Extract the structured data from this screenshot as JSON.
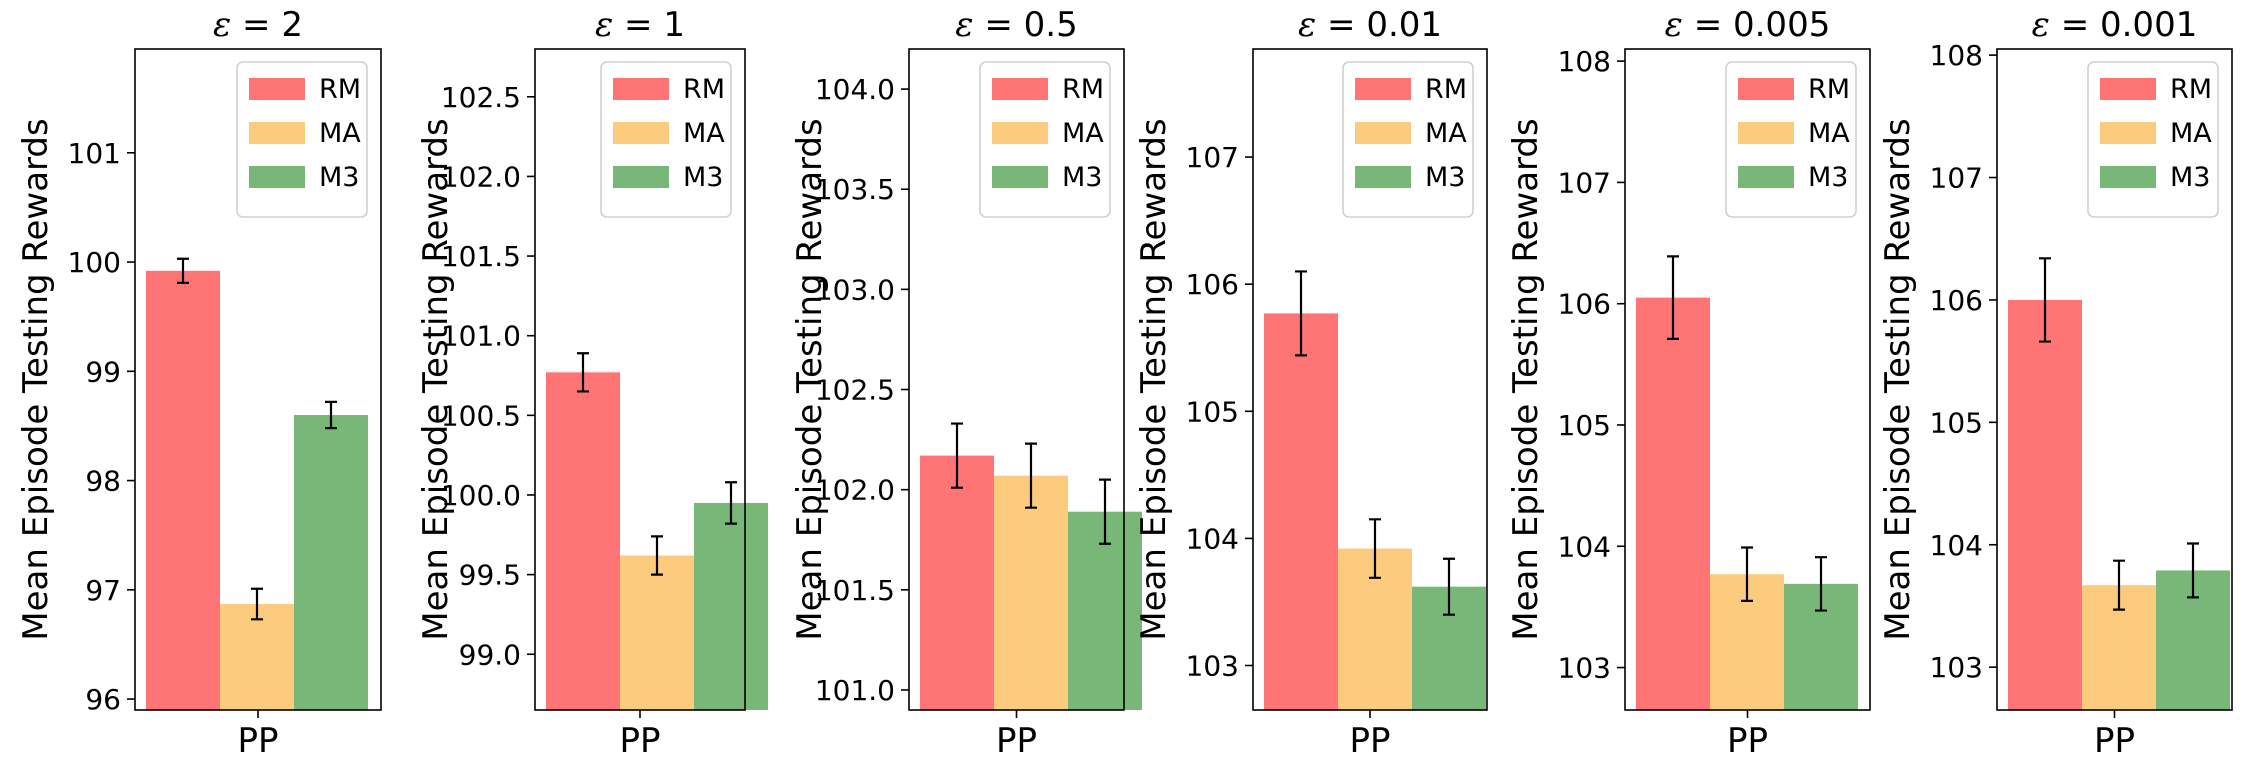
{
  "chart_data": [
    {
      "type": "bar",
      "title": "ε = 2",
      "title_prefix": "ε",
      "title_value": " = 2",
      "ylabel": "Mean Episode Testing Rewards",
      "categories": [
        "PP"
      ],
      "ylim": [
        95.9,
        101.95
      ],
      "yticks": [
        96,
        97,
        98,
        99,
        100,
        101
      ],
      "ytick_labels": [
        "96",
        "97",
        "98",
        "99",
        "100",
        "101"
      ],
      "series": [
        {
          "name": "RM",
          "values": [
            99.92
          ],
          "err": [
            0.11
          ]
        },
        {
          "name": "MA",
          "values": [
            96.87
          ],
          "err": [
            0.14
          ]
        },
        {
          "name": "M3",
          "values": [
            98.6
          ],
          "err": [
            0.12
          ]
        }
      ],
      "legend_position": "top-right"
    },
    {
      "type": "bar",
      "title": "ε = 1",
      "title_prefix": "ε",
      "title_value": " = 1",
      "ylabel": "Mean Episode Testing Rewards",
      "categories": [
        "PP"
      ],
      "ylim": [
        98.65,
        102.8
      ],
      "yticks": [
        99.0,
        99.5,
        100.0,
        100.5,
        101.0,
        101.5,
        102.0,
        102.5
      ],
      "ytick_labels": [
        "99.0",
        "99.5",
        "100.0",
        "100.5",
        "101.0",
        "101.5",
        "102.0",
        "102.5"
      ],
      "series": [
        {
          "name": "RM",
          "values": [
            100.77
          ],
          "err": [
            0.12
          ]
        },
        {
          "name": "MA",
          "values": [
            99.62
          ],
          "err": [
            0.12
          ]
        },
        {
          "name": "M3",
          "values": [
            99.95
          ],
          "err": [
            0.13
          ]
        }
      ],
      "legend_position": "top-right"
    },
    {
      "type": "bar",
      "title": "ε = 0.5",
      "title_prefix": "ε",
      "title_value": " = 0.5",
      "ylabel": "Mean Episode Testing Rewards",
      "categories": [
        "PP"
      ],
      "ylim": [
        100.9,
        104.2
      ],
      "yticks": [
        101.0,
        101.5,
        102.0,
        102.5,
        103.0,
        103.5,
        104.0
      ],
      "ytick_labels": [
        "101.0",
        "101.5",
        "102.0",
        "102.5",
        "103.0",
        "103.5",
        "104.0"
      ],
      "series": [
        {
          "name": "RM",
          "values": [
            102.17
          ],
          "err": [
            0.16
          ]
        },
        {
          "name": "MA",
          "values": [
            102.07
          ],
          "err": [
            0.16
          ]
        },
        {
          "name": "M3",
          "values": [
            101.89
          ],
          "err": [
            0.16
          ]
        }
      ],
      "legend_position": "top-right"
    },
    {
      "type": "bar",
      "title": "ε = 0.01",
      "title_prefix": "ε",
      "title_value": " = 0.01",
      "ylabel": "Mean Episode Testing Rewards",
      "categories": [
        "PP"
      ],
      "ylim": [
        102.65,
        107.85
      ],
      "yticks": [
        103,
        104,
        105,
        106,
        107
      ],
      "ytick_labels": [
        "103",
        "104",
        "105",
        "106",
        "107"
      ],
      "series": [
        {
          "name": "RM",
          "values": [
            105.77
          ],
          "err": [
            0.33
          ]
        },
        {
          "name": "MA",
          "values": [
            103.92
          ],
          "err": [
            0.23
          ]
        },
        {
          "name": "M3",
          "values": [
            103.62
          ],
          "err": [
            0.22
          ]
        }
      ],
      "legend_position": "top-right"
    },
    {
      "type": "bar",
      "title": "ε = 0.005",
      "title_prefix": "ε",
      "title_value": " = 0.005",
      "ylabel": "Mean Episode Testing Rewards",
      "categories": [
        "PP"
      ],
      "ylim": [
        102.65,
        108.1
      ],
      "yticks": [
        103,
        104,
        105,
        106,
        107,
        108
      ],
      "ytick_labels": [
        "103",
        "104",
        "105",
        "106",
        "107",
        "108"
      ],
      "series": [
        {
          "name": "RM",
          "values": [
            106.05
          ],
          "err": [
            0.34
          ]
        },
        {
          "name": "MA",
          "values": [
            103.77
          ],
          "err": [
            0.22
          ]
        },
        {
          "name": "M3",
          "values": [
            103.69
          ],
          "err": [
            0.22
          ]
        }
      ],
      "legend_position": "top-right"
    },
    {
      "type": "bar",
      "title": "ε = 0.001",
      "title_prefix": "ε",
      "title_value": " = 0.001",
      "ylabel": "Mean Episode Testing Rewards",
      "categories": [
        "PP"
      ],
      "ylim": [
        102.65,
        108.05
      ],
      "yticks": [
        103,
        104,
        105,
        106,
        107,
        108
      ],
      "ytick_labels": [
        "103",
        "104",
        "105",
        "106",
        "107",
        "108"
      ],
      "series": [
        {
          "name": "RM",
          "values": [
            106.0
          ],
          "err": [
            0.34
          ]
        },
        {
          "name": "MA",
          "values": [
            103.67
          ],
          "err": [
            0.2
          ]
        },
        {
          "name": "M3",
          "values": [
            103.79
          ],
          "err": [
            0.22
          ]
        }
      ],
      "legend_position": "top-right"
    }
  ],
  "colors": {
    "RM": "#ff7575",
    "MA": "#fdcb7d",
    "M3": "#79b778"
  }
}
